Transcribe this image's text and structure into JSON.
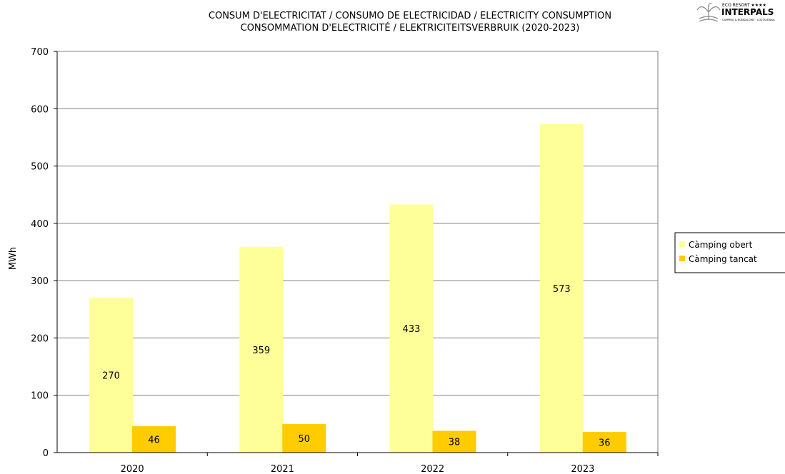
{
  "logo": {
    "tagline": "ECO RESORT ★★★★",
    "name": "INTERPALS",
    "subline": "CAMPING & BUNGALOWS · COSTA BRAVA"
  },
  "chart_data": {
    "type": "bar",
    "title_lines": [
      "CONSUM D'ELECTRICITAT / CONSUMO DE ELECTRICIDAD / ELECTRICITY CONSUMPTION",
      "CONSOMMATION D'ELECTRICITÉ / ELEKTRICITEITSVERBRUIK (2020-2023)"
    ],
    "xlabel": "",
    "ylabel": "MWh",
    "ylim": [
      0,
      700
    ],
    "yticks": [
      0,
      100,
      200,
      300,
      400,
      500,
      600,
      700
    ],
    "grid": true,
    "legend_position": "right",
    "categories": [
      "2020",
      "2021",
      "2022",
      "2023"
    ],
    "series": [
      {
        "name": "Càmping obert",
        "color": "#ffff99",
        "values": [
          270,
          359,
          433,
          573
        ],
        "labels": [
          "270",
          "359",
          "433",
          "573"
        ]
      },
      {
        "name": "Càmping tancat",
        "color": "#ffcc00",
        "values": [
          46,
          50,
          38,
          36
        ],
        "labels": [
          "46",
          "50",
          "38",
          "36"
        ]
      }
    ]
  }
}
